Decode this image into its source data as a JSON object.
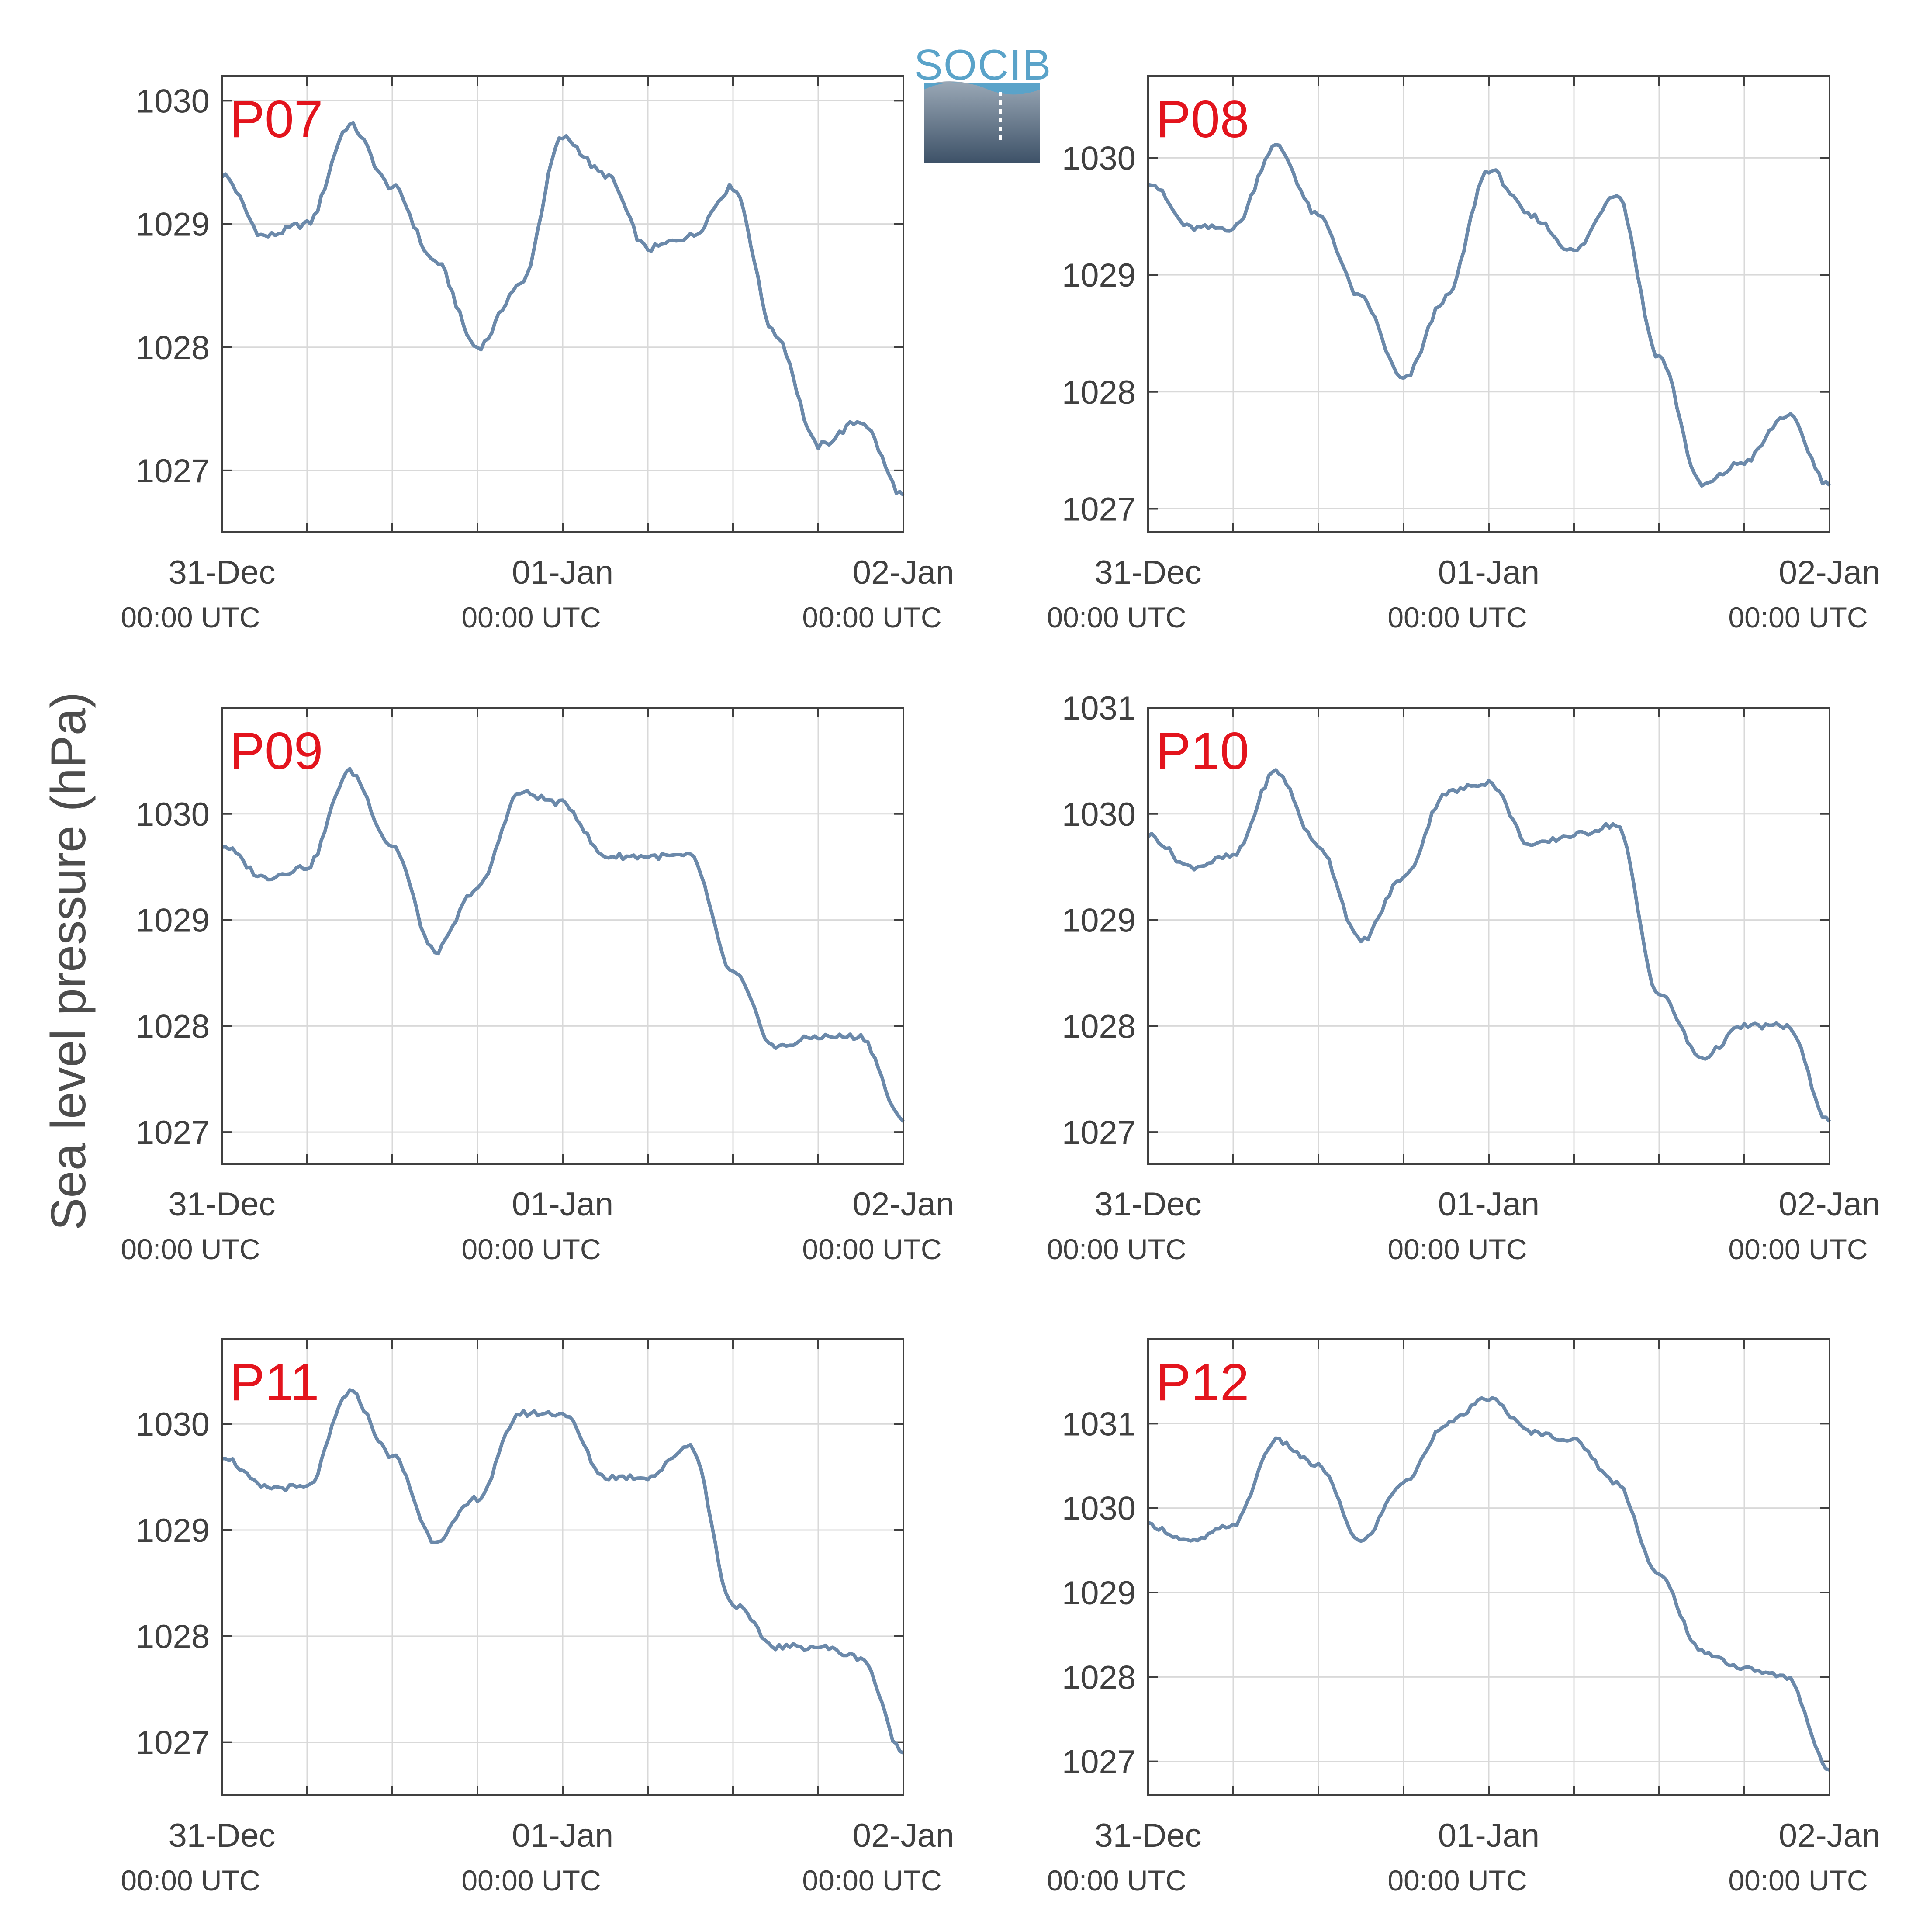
{
  "y_axis_label": "Sea level pressure (hPa)",
  "logo": {
    "text": "SOCIB",
    "color": "#5aa3c9"
  },
  "colors": {
    "line": "#6b89aa",
    "station_label": "#e3141d",
    "axis": "#404040",
    "grid": "#d9d9d9",
    "text": "#404040"
  },
  "chart_data": [
    {
      "type": "line",
      "station": "P07",
      "x": [
        "31-Dec 00:00 UTC",
        "31-Dec 03:00",
        "31-Dec 06:00",
        "31-Dec 09:00",
        "31-Dec 12:00",
        "31-Dec 15:00",
        "31-Dec 18:00",
        "31-Dec 21:00",
        "01-Jan 00:00 UTC",
        "01-Jan 03:00",
        "01-Jan 06:00",
        "01-Jan 09:00",
        "01-Jan 12:00",
        "01-Jan 15:00",
        "01-Jan 18:00",
        "01-Jan 21:00",
        "02-Jan 00:00 UTC"
      ],
      "x_ticks": [
        {
          "day": "31-Dec",
          "time": "00:00 UTC"
        },
        {
          "day": "01-Jan",
          "time": "00:00 UTC"
        },
        {
          "day": "02-Jan",
          "time": "00:00 UTC"
        }
      ],
      "values": [
        1029.4,
        1028.9,
        1029.0,
        1029.8,
        1029.3,
        1028.7,
        1028.0,
        1028.5,
        1029.7,
        1029.4,
        1028.8,
        1028.9,
        1029.3,
        1028.1,
        1027.2,
        1027.4,
        1026.8
      ],
      "ylim": [
        1026.5,
        1030.2
      ],
      "yticks": [
        1027,
        1028,
        1029,
        1030
      ],
      "grid": true,
      "xlabel": "",
      "ylabel": ""
    },
    {
      "type": "line",
      "station": "P08",
      "x": [
        "31-Dec 00:00 UTC",
        "31-Dec 03:00",
        "31-Dec 06:00",
        "31-Dec 09:00",
        "31-Dec 12:00",
        "31-Dec 15:00",
        "31-Dec 18:00",
        "31-Dec 21:00",
        "01-Jan 00:00 UTC",
        "01-Jan 03:00",
        "01-Jan 06:00",
        "01-Jan 09:00",
        "01-Jan 12:00",
        "01-Jan 15:00",
        "01-Jan 18:00",
        "01-Jan 21:00",
        "02-Jan 00:00 UTC"
      ],
      "x_ticks": [
        {
          "day": "31-Dec",
          "time": "00:00 UTC"
        },
        {
          "day": "01-Jan",
          "time": "00:00 UTC"
        },
        {
          "day": "02-Jan",
          "time": "00:00 UTC"
        }
      ],
      "values": [
        1029.8,
        1029.4,
        1029.4,
        1030.1,
        1029.5,
        1028.8,
        1028.1,
        1028.8,
        1029.9,
        1029.5,
        1029.2,
        1029.7,
        1028.3,
        1027.2,
        1027.4,
        1027.8,
        1027.2
      ],
      "ylim": [
        1026.8,
        1030.7
      ],
      "yticks": [
        1027,
        1028,
        1029,
        1030
      ],
      "grid": true,
      "xlabel": "",
      "ylabel": ""
    },
    {
      "type": "line",
      "station": "P09",
      "x": [
        "31-Dec 00:00 UTC",
        "31-Dec 03:00",
        "31-Dec 06:00",
        "31-Dec 09:00",
        "31-Dec 12:00",
        "31-Dec 15:00",
        "31-Dec 18:00",
        "31-Dec 21:00",
        "01-Jan 00:00 UTC",
        "01-Jan 03:00",
        "01-Jan 06:00",
        "01-Jan 09:00",
        "01-Jan 12:00",
        "01-Jan 15:00",
        "01-Jan 18:00",
        "01-Jan 21:00",
        "02-Jan 00:00 UTC"
      ],
      "x_ticks": [
        {
          "day": "31-Dec",
          "time": "00:00 UTC"
        },
        {
          "day": "01-Jan",
          "time": "00:00 UTC"
        },
        {
          "day": "02-Jan",
          "time": "00:00 UTC"
        }
      ],
      "values": [
        1029.7,
        1029.4,
        1029.5,
        1030.4,
        1029.7,
        1028.7,
        1029.3,
        1030.2,
        1030.1,
        1029.6,
        1029.6,
        1029.6,
        1028.5,
        1027.8,
        1027.9,
        1027.9,
        1027.1
      ],
      "ylim": [
        1026.7,
        1031.0
      ],
      "yticks": [
        1027,
        1028,
        1029,
        1030
      ],
      "grid": true,
      "xlabel": "",
      "ylabel": ""
    },
    {
      "type": "line",
      "station": "P10",
      "x": [
        "31-Dec 00:00 UTC",
        "31-Dec 03:00",
        "31-Dec 06:00",
        "31-Dec 09:00",
        "31-Dec 12:00",
        "31-Dec 15:00",
        "31-Dec 18:00",
        "31-Dec 21:00",
        "01-Jan 00:00 UTC",
        "01-Jan 03:00",
        "01-Jan 06:00",
        "01-Jan 09:00",
        "01-Jan 12:00",
        "01-Jan 15:00",
        "01-Jan 18:00",
        "01-Jan 21:00",
        "02-Jan 00:00 UTC"
      ],
      "x_ticks": [
        {
          "day": "31-Dec",
          "time": "00:00 UTC"
        },
        {
          "day": "01-Jan",
          "time": "00:00 UTC"
        },
        {
          "day": "02-Jan",
          "time": "00:00 UTC"
        }
      ],
      "values": [
        1029.8,
        1029.5,
        1029.6,
        1030.4,
        1029.7,
        1028.8,
        1029.4,
        1030.2,
        1030.3,
        1029.7,
        1029.8,
        1029.9,
        1028.3,
        1027.7,
        1028.0,
        1028.0,
        1027.1
      ],
      "ylim": [
        1026.7,
        1031.0
      ],
      "yticks": [
        1027,
        1028,
        1029,
        1030,
        1031
      ],
      "grid": true,
      "xlabel": "",
      "ylabel": ""
    },
    {
      "type": "line",
      "station": "P11",
      "x": [
        "31-Dec 00:00 UTC",
        "31-Dec 03:00",
        "31-Dec 06:00",
        "31-Dec 09:00",
        "31-Dec 12:00",
        "31-Dec 15:00",
        "31-Dec 18:00",
        "31-Dec 21:00",
        "01-Jan 00:00 UTC",
        "01-Jan 03:00",
        "01-Jan 06:00",
        "01-Jan 09:00",
        "01-Jan 12:00",
        "01-Jan 15:00",
        "01-Jan 18:00",
        "01-Jan 21:00",
        "02-Jan 00:00 UTC"
      ],
      "x_ticks": [
        {
          "day": "31-Dec",
          "time": "00:00 UTC"
        },
        {
          "day": "01-Jan",
          "time": "00:00 UTC"
        },
        {
          "day": "02-Jan",
          "time": "00:00 UTC"
        }
      ],
      "values": [
        1029.7,
        1029.4,
        1029.4,
        1030.3,
        1029.7,
        1028.9,
        1029.3,
        1030.1,
        1030.1,
        1029.5,
        1029.5,
        1029.8,
        1028.3,
        1027.9,
        1027.9,
        1027.8,
        1026.9
      ],
      "ylim": [
        1026.5,
        1030.8
      ],
      "yticks": [
        1027,
        1028,
        1029,
        1030
      ],
      "grid": true,
      "xlabel": "",
      "ylabel": ""
    },
    {
      "type": "line",
      "station": "P12",
      "x": [
        "31-Dec 00:00 UTC",
        "31-Dec 03:00",
        "31-Dec 06:00",
        "31-Dec 09:00",
        "31-Dec 12:00",
        "31-Dec 15:00",
        "31-Dec 18:00",
        "31-Dec 21:00",
        "01-Jan 00:00 UTC",
        "01-Jan 03:00",
        "01-Jan 06:00",
        "01-Jan 09:00",
        "01-Jan 12:00",
        "01-Jan 15:00",
        "01-Jan 18:00",
        "01-Jan 21:00",
        "02-Jan 00:00 UTC"
      ],
      "x_ticks": [
        {
          "day": "31-Dec",
          "time": "00:00 UTC"
        },
        {
          "day": "01-Jan",
          "time": "00:00 UTC"
        },
        {
          "day": "02-Jan",
          "time": "00:00 UTC"
        }
      ],
      "values": [
        1029.8,
        1029.6,
        1029.8,
        1030.8,
        1030.5,
        1029.6,
        1030.3,
        1031.0,
        1031.3,
        1030.9,
        1030.8,
        1030.3,
        1029.2,
        1028.3,
        1028.1,
        1028.0,
        1026.9
      ],
      "ylim": [
        1026.6,
        1032.0
      ],
      "yticks": [
        1027,
        1028,
        1029,
        1030,
        1031
      ],
      "grid": true,
      "xlabel": "",
      "ylabel": ""
    }
  ]
}
